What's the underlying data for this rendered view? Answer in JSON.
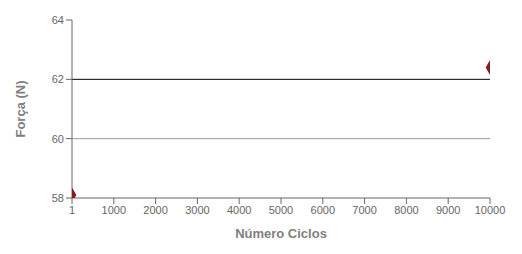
{
  "chart_data": {
    "type": "scatter",
    "x": [
      1,
      10000
    ],
    "values": [
      58.1,
      62.4
    ],
    "xlabel": "Número Ciclos",
    "ylabel": "Força (N)",
    "color": "#8B1A1A",
    "marker": "diamond",
    "xlim": [
      0,
      10000
    ],
    "ylim": [
      58,
      64
    ],
    "xticks": [
      1,
      1000,
      2000,
      3000,
      4000,
      5000,
      6000,
      7000,
      8000,
      9000,
      10000
    ],
    "yticks": [
      58,
      60,
      62,
      64
    ],
    "hlines": [
      {
        "y": 62,
        "color": "#000000"
      },
      {
        "y": 60,
        "color": "#9A9A9A"
      }
    ],
    "grid": false
  }
}
